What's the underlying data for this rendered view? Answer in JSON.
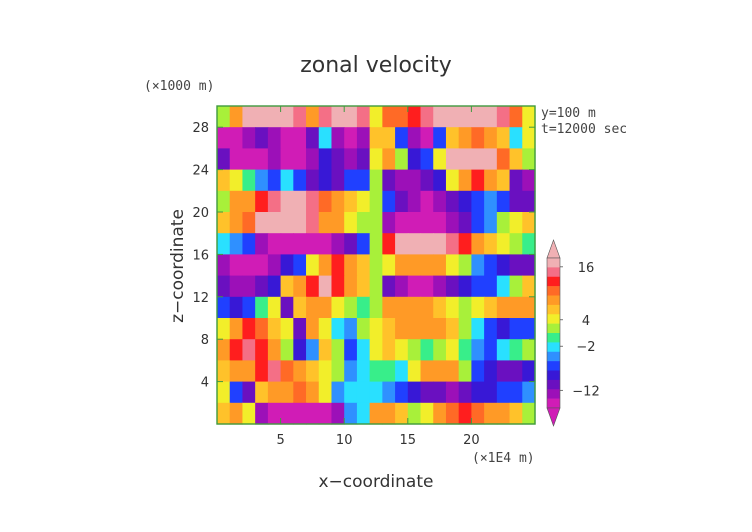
{
  "chart_data": {
    "type": "heatmap",
    "title": "zonal velocity",
    "xlabel": "x−coordinate",
    "ylabel": "z−coordinate",
    "x_unit": "(×1E4 m)",
    "y_unit": "(×1000 m)",
    "annotations": [
      "y=100 m",
      "t=12000 sec"
    ],
    "xlim": [
      0,
      25
    ],
    "ylim": [
      0,
      30
    ],
    "x_ticks": [
      5,
      10,
      15,
      20
    ],
    "y_ticks": [
      4,
      8,
      12,
      16,
      20,
      24,
      28
    ],
    "colorbar": {
      "labels": [
        16,
        4,
        -2,
        -12
      ],
      "colors": [
        "#f0b0b4",
        "#f46f86",
        "#ff1e1e",
        "#ff6a26",
        "#ff9a26",
        "#ffc22a",
        "#f2ee2a",
        "#a8f03a",
        "#38ee8a",
        "#29e0ff",
        "#2f90ff",
        "#2040ff",
        "#3818d6",
        "#6a10c0",
        "#9c10b8",
        "#d01cb6"
      ],
      "extend": "both"
    },
    "grid": {
      "rows": 15,
      "cols": 25,
      "z_centers_top_to_bottom": [
        29,
        27,
        25,
        23,
        21,
        19,
        17,
        15,
        13,
        11,
        9,
        7,
        5,
        3,
        1
      ],
      "x_centers": [
        0.5,
        1.5,
        2.5,
        3.5,
        4.5,
        5.5,
        6.5,
        7.5,
        8.5,
        9.5,
        10.5,
        11.5,
        12.5,
        13.5,
        14.5,
        15.5,
        16.5,
        17.5,
        18.5,
        19.5,
        20.5,
        21.5,
        22.5,
        23.5,
        24.5
      ],
      "values": [
        [
          2,
          8,
          18,
          18,
          18,
          18,
          16,
          10,
          16,
          18,
          18,
          16,
          4,
          12,
          12,
          14,
          16,
          18,
          18,
          18,
          18,
          18,
          16,
          12,
          4
        ],
        [
          -16,
          -16,
          -14,
          -12,
          -14,
          -16,
          -16,
          -12,
          -2,
          -14,
          -16,
          -14,
          6,
          6,
          -8,
          -14,
          -16,
          -8,
          6,
          8,
          12,
          8,
          6,
          -2,
          4
        ],
        [
          -12,
          -16,
          -16,
          -16,
          -14,
          -16,
          -16,
          -14,
          -10,
          -12,
          -14,
          -12,
          4,
          8,
          2,
          -10,
          -8,
          4,
          18,
          18,
          18,
          18,
          12,
          6,
          2
        ],
        [
          6,
          4,
          0,
          -4,
          -6,
          -2,
          -8,
          -12,
          -10,
          -12,
          -8,
          -6,
          2,
          -12,
          -14,
          -14,
          -12,
          -10,
          4,
          10,
          14,
          10,
          6,
          -12,
          -14
        ],
        [
          2,
          8,
          10,
          14,
          16,
          18,
          18,
          16,
          12,
          8,
          6,
          4,
          2,
          -8,
          -12,
          -14,
          -16,
          -14,
          -12,
          -10,
          -6,
          -4,
          -8,
          -12,
          -12
        ],
        [
          6,
          10,
          12,
          18,
          18,
          18,
          18,
          16,
          10,
          8,
          4,
          2,
          2,
          -14,
          -16,
          -16,
          -16,
          -16,
          -14,
          -12,
          -8,
          -4,
          2,
          4,
          6
        ],
        [
          -2,
          -4,
          -8,
          -14,
          -16,
          -16,
          -16,
          -16,
          -16,
          -14,
          -12,
          -6,
          2,
          14,
          18,
          18,
          18,
          18,
          16,
          14,
          10,
          6,
          4,
          2,
          0
        ],
        [
          -14,
          -16,
          -16,
          -16,
          -14,
          -10,
          -6,
          4,
          10,
          14,
          10,
          6,
          2,
          4,
          8,
          10,
          10,
          8,
          4,
          2,
          -4,
          -8,
          -10,
          -12,
          -12
        ],
        [
          -12,
          -14,
          -14,
          -12,
          -10,
          6,
          10,
          14,
          18,
          14,
          10,
          6,
          2,
          -12,
          -14,
          -16,
          -16,
          -14,
          -12,
          -10,
          -8,
          -6,
          -2,
          2,
          6
        ],
        [
          -8,
          -10,
          -8,
          0,
          4,
          -12,
          6,
          10,
          8,
          4,
          2,
          0,
          2,
          8,
          10,
          10,
          8,
          6,
          4,
          2,
          4,
          6,
          8,
          10,
          10
        ],
        [
          4,
          10,
          14,
          12,
          6,
          4,
          -12,
          8,
          4,
          -2,
          -4,
          2,
          4,
          6,
          8,
          10,
          10,
          8,
          6,
          2,
          -2,
          -6,
          -10,
          -8,
          -6
        ],
        [
          8,
          14,
          16,
          14,
          8,
          2,
          -10,
          -4,
          6,
          2,
          -6,
          -2,
          4,
          6,
          4,
          2,
          0,
          2,
          4,
          0,
          -4,
          -6,
          -2,
          0,
          2
        ],
        [
          6,
          8,
          10,
          14,
          16,
          12,
          8,
          6,
          4,
          2,
          -4,
          -2,
          0,
          0,
          -2,
          4,
          8,
          10,
          8,
          2,
          -6,
          -10,
          -12,
          -12,
          -10
        ],
        [
          4,
          -8,
          -12,
          6,
          8,
          10,
          12,
          8,
          4,
          -4,
          -2,
          -2,
          -2,
          -4,
          -8,
          -10,
          -12,
          -12,
          -14,
          -12,
          -10,
          -10,
          -8,
          -6,
          -4
        ],
        [
          6,
          8,
          4,
          -14,
          -16,
          -16,
          -16,
          -16,
          -16,
          -14,
          -4,
          -2,
          8,
          10,
          6,
          2,
          4,
          8,
          12,
          14,
          12,
          10,
          8,
          6,
          2
        ]
      ]
    }
  },
  "colors": {
    "axis": "#44aa44",
    "text": "#333333"
  }
}
